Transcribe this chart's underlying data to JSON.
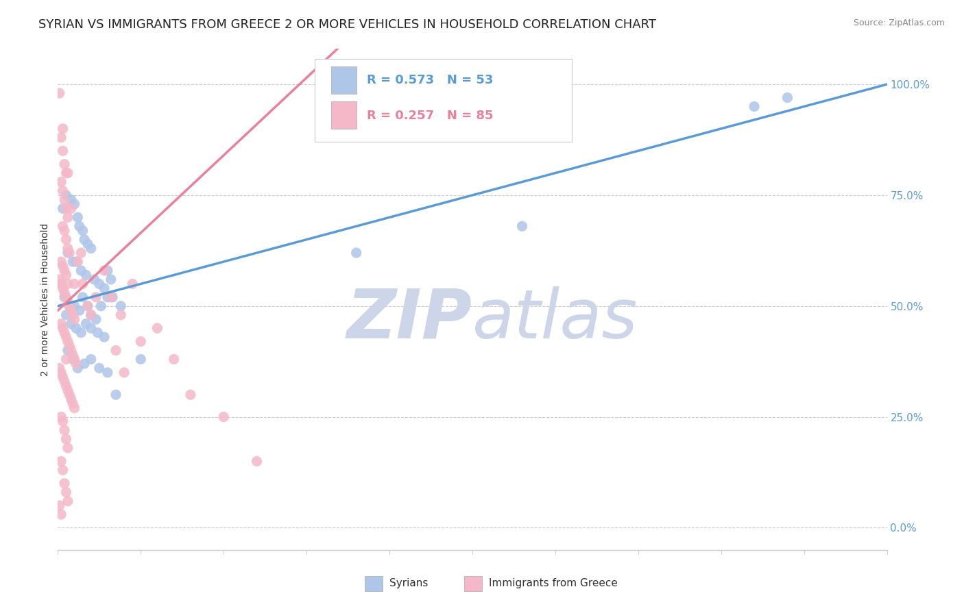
{
  "title": "SYRIAN VS IMMIGRANTS FROM GREECE 2 OR MORE VEHICLES IN HOUSEHOLD CORRELATION CHART",
  "source": "Source: ZipAtlas.com",
  "ylabel": "2 or more Vehicles in Household",
  "ytick_values": [
    0,
    25,
    50,
    75,
    100
  ],
  "xlim": [
    0,
    50
  ],
  "ylim": [
    -5,
    108
  ],
  "legend_entries": [
    {
      "label": "R = 0.573   N = 53",
      "color": "#aec6e8"
    },
    {
      "label": "R = 0.257   N = 85",
      "color": "#f4b8c8"
    }
  ],
  "legend_bottom": [
    "Syrians",
    "Immigrants from Greece"
  ],
  "legend_bottom_colors": [
    "#aec6e8",
    "#f4b8c8"
  ],
  "syrians_color": "#aec6e8",
  "greeks_color": "#f4b8c8",
  "syrians_line_color": "#5b9bd5",
  "greeks_line_color": "#e8829a",
  "watermark_zip": "ZIP",
  "watermark_atlas": "atlas",
  "watermark_color": "#ccd6e8",
  "background_color": "#ffffff",
  "title_fontsize": 13,
  "axis_label_fontsize": 10,
  "tick_fontsize": 11,
  "syrians_scatter": [
    [
      0.3,
      72
    ],
    [
      0.5,
      75
    ],
    [
      0.8,
      74
    ],
    [
      1.0,
      73
    ],
    [
      1.2,
      70
    ],
    [
      1.3,
      68
    ],
    [
      1.5,
      67
    ],
    [
      1.6,
      65
    ],
    [
      1.8,
      64
    ],
    [
      2.0,
      63
    ],
    [
      0.6,
      62
    ],
    [
      0.9,
      60
    ],
    [
      1.1,
      60
    ],
    [
      1.4,
      58
    ],
    [
      1.7,
      57
    ],
    [
      2.2,
      56
    ],
    [
      2.5,
      55
    ],
    [
      2.8,
      54
    ],
    [
      3.0,
      58
    ],
    [
      3.2,
      56
    ],
    [
      0.4,
      52
    ],
    [
      0.7,
      50
    ],
    [
      1.0,
      50
    ],
    [
      1.3,
      49
    ],
    [
      1.5,
      52
    ],
    [
      1.8,
      50
    ],
    [
      2.0,
      48
    ],
    [
      2.3,
      47
    ],
    [
      2.6,
      50
    ],
    [
      3.0,
      52
    ],
    [
      0.5,
      48
    ],
    [
      0.8,
      46
    ],
    [
      1.1,
      45
    ],
    [
      1.4,
      44
    ],
    [
      1.7,
      46
    ],
    [
      2.0,
      45
    ],
    [
      2.4,
      44
    ],
    [
      2.8,
      43
    ],
    [
      3.3,
      52
    ],
    [
      3.8,
      50
    ],
    [
      0.6,
      40
    ],
    [
      0.9,
      38
    ],
    [
      1.2,
      36
    ],
    [
      1.6,
      37
    ],
    [
      2.0,
      38
    ],
    [
      2.5,
      36
    ],
    [
      3.0,
      35
    ],
    [
      3.5,
      30
    ],
    [
      5.0,
      38
    ],
    [
      28.0,
      68
    ],
    [
      42.0,
      95
    ],
    [
      44.0,
      97
    ],
    [
      18.0,
      62
    ]
  ],
  "greeks_scatter": [
    [
      0.1,
      98
    ],
    [
      0.2,
      88
    ],
    [
      0.3,
      85
    ],
    [
      0.4,
      82
    ],
    [
      0.5,
      80
    ],
    [
      0.2,
      78
    ],
    [
      0.3,
      76
    ],
    [
      0.4,
      74
    ],
    [
      0.5,
      72
    ],
    [
      0.6,
      70
    ],
    [
      0.3,
      68
    ],
    [
      0.4,
      67
    ],
    [
      0.5,
      65
    ],
    [
      0.6,
      63
    ],
    [
      0.7,
      62
    ],
    [
      0.2,
      60
    ],
    [
      0.3,
      59
    ],
    [
      0.4,
      58
    ],
    [
      0.5,
      57
    ],
    [
      0.6,
      55
    ],
    [
      0.1,
      56
    ],
    [
      0.2,
      55
    ],
    [
      0.3,
      54
    ],
    [
      0.4,
      53
    ],
    [
      0.5,
      52
    ],
    [
      0.6,
      51
    ],
    [
      0.7,
      50
    ],
    [
      0.8,
      49
    ],
    [
      0.9,
      48
    ],
    [
      1.0,
      47
    ],
    [
      0.2,
      46
    ],
    [
      0.3,
      45
    ],
    [
      0.4,
      44
    ],
    [
      0.5,
      43
    ],
    [
      0.6,
      42
    ],
    [
      0.7,
      41
    ],
    [
      0.8,
      40
    ],
    [
      0.9,
      39
    ],
    [
      1.0,
      38
    ],
    [
      1.1,
      37
    ],
    [
      0.1,
      36
    ],
    [
      0.2,
      35
    ],
    [
      0.3,
      34
    ],
    [
      0.4,
      33
    ],
    [
      0.5,
      32
    ],
    [
      0.6,
      31
    ],
    [
      0.7,
      30
    ],
    [
      0.8,
      29
    ],
    [
      0.9,
      28
    ],
    [
      1.0,
      27
    ],
    [
      0.2,
      25
    ],
    [
      0.3,
      24
    ],
    [
      0.4,
      22
    ],
    [
      0.5,
      20
    ],
    [
      0.6,
      18
    ],
    [
      0.2,
      15
    ],
    [
      0.3,
      13
    ],
    [
      0.4,
      10
    ],
    [
      0.5,
      8
    ],
    [
      0.6,
      6
    ],
    [
      1.2,
      60
    ],
    [
      1.5,
      55
    ],
    [
      1.8,
      50
    ],
    [
      2.0,
      48
    ],
    [
      2.3,
      52
    ],
    [
      2.8,
      58
    ],
    [
      3.2,
      52
    ],
    [
      3.8,
      48
    ],
    [
      4.5,
      55
    ],
    [
      5.0,
      42
    ],
    [
      0.1,
      5
    ],
    [
      0.2,
      3
    ],
    [
      3.5,
      40
    ],
    [
      4.0,
      35
    ],
    [
      6.0,
      45
    ],
    [
      7.0,
      38
    ],
    [
      8.0,
      30
    ],
    [
      10.0,
      25
    ],
    [
      12.0,
      15
    ],
    [
      0.5,
      38
    ],
    [
      1.0,
      55
    ],
    [
      1.4,
      62
    ],
    [
      0.8,
      72
    ],
    [
      0.6,
      80
    ],
    [
      0.3,
      90
    ]
  ]
}
